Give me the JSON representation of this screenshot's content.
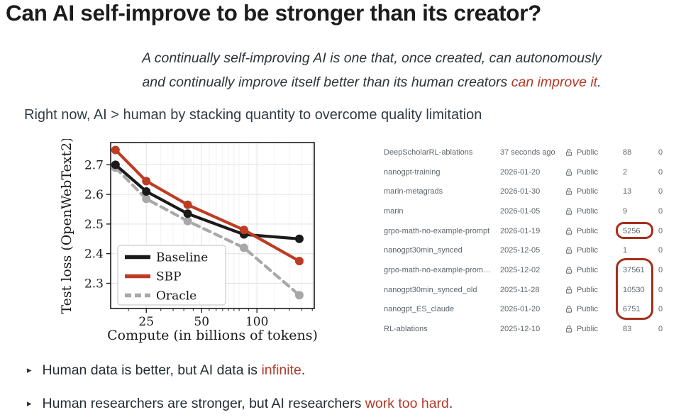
{
  "title": "Can AI self-improve to be stronger than its creator?",
  "subtitle": {
    "line1": "A continually self-improving AI is one that, once created, can autonomously",
    "line2_prefix": "and continually improve itself better than its human creators ",
    "line2_accent": "can improve it",
    "line2_suffix": "."
  },
  "section_heading": "Right now, AI > human by stacking quantity to overcome quality limitation",
  "accent_color": "#b23a28",
  "annotation_color": "#a52f1b",
  "chart_data": {
    "type": "line",
    "x": [
      17,
      25,
      42,
      85,
      170
    ],
    "xscale": "log",
    "xlim": [
      16,
      205
    ],
    "ylim": [
      2.215,
      2.775
    ],
    "xticks": [
      25,
      50,
      100
    ],
    "minor_xticks": [
      20,
      30,
      35,
      40,
      45,
      55,
      60,
      65,
      70,
      75,
      80,
      90,
      125,
      150,
      175,
      200
    ],
    "yticks": [
      2.3,
      2.4,
      2.5,
      2.6,
      2.7
    ],
    "xlabel": "Compute (in billions of tokens)",
    "ylabel": "Test loss (OpenWebText2)",
    "grid": true,
    "legend_position": "lower left",
    "draw_order": [
      2,
      0,
      1
    ],
    "series": [
      {
        "name": "Baseline",
        "color": "#1a1a1a",
        "dash": null,
        "values": [
          2.7,
          2.61,
          2.535,
          2.465,
          2.45
        ]
      },
      {
        "name": "SBP",
        "color": "#bd3c23",
        "dash": null,
        "values": [
          2.75,
          2.645,
          2.565,
          2.48,
          2.375
        ]
      },
      {
        "name": "Oracle",
        "color": "#a8a8a8",
        "dash": [
          10,
          7
        ],
        "values": [
          2.69,
          2.585,
          2.51,
          2.42,
          2.26
        ]
      }
    ]
  },
  "runs_table": {
    "rows": [
      {
        "name": "DeepScholarRL-ablations",
        "updated": "37 seconds ago",
        "visibility": "Public",
        "count": "88",
        "stars": "0",
        "highlight": null
      },
      {
        "name": "nanogpt-training",
        "updated": "2026-01-20",
        "visibility": "Public",
        "count": "2",
        "stars": "0",
        "highlight": null
      },
      {
        "name": "marin-metagrads",
        "updated": "2026-01-30",
        "visibility": "Public",
        "count": "13",
        "stars": "0",
        "highlight": null
      },
      {
        "name": "marin",
        "updated": "2026-01-05",
        "visibility": "Public",
        "count": "9",
        "stars": "0",
        "highlight": null
      },
      {
        "name": "grpo-math-no-example-prompt",
        "updated": "2026-01-19",
        "visibility": "Public",
        "count": "5256",
        "stars": "0",
        "highlight": "single"
      },
      {
        "name": "nanogpt30min_synced",
        "updated": "2025-12-05",
        "visibility": "Public",
        "count": "1",
        "stars": "0",
        "highlight": null
      },
      {
        "name": "grpo-math-no-example-prom…",
        "updated": "2025-12-02",
        "visibility": "Public",
        "count": "37561",
        "stars": "0",
        "highlight": "group"
      },
      {
        "name": "nanogpt30min_synced_old",
        "updated": "2025-11-28",
        "visibility": "Public",
        "count": "10530",
        "stars": "0",
        "highlight": "group"
      },
      {
        "name": "nanogpt_ES_claude",
        "updated": "2026-01-20",
        "visibility": "Public",
        "count": "6751",
        "stars": "0",
        "highlight": "group"
      },
      {
        "name": "RL-ablations",
        "updated": "2025-12-10",
        "visibility": "Public",
        "count": "83",
        "stars": "0",
        "highlight": null
      }
    ]
  },
  "bullets": [
    {
      "prefix": "Human data is better, but AI data is ",
      "accent": "infinite",
      "suffix": "."
    },
    {
      "prefix": "Human researchers are stronger, but AI researchers ",
      "accent": "work too hard",
      "suffix": "."
    }
  ]
}
